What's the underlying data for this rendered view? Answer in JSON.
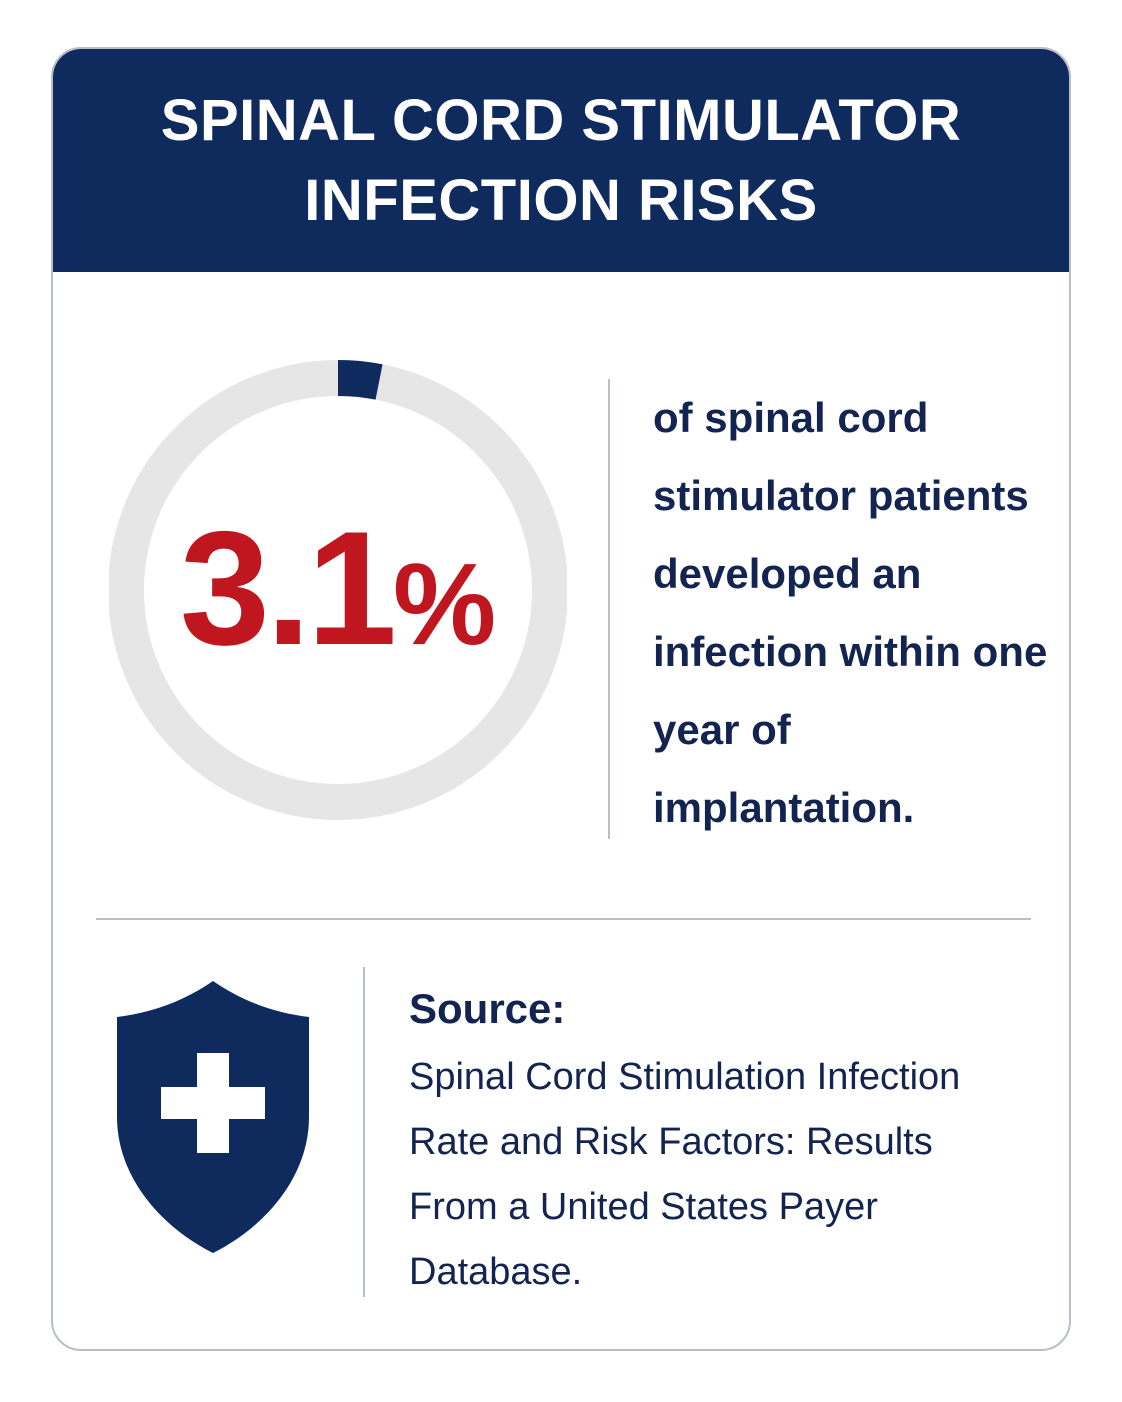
{
  "header": {
    "title": "SPINAL CORD STIMULATOR INFECTION RISKS"
  },
  "stat": {
    "number": "3.1",
    "unit": "%",
    "fraction": 0.031,
    "description": "of spinal cord stimulator patients developed an infection within one year of implantation."
  },
  "source": {
    "label": "Source:",
    "text": "Spinal Cord Stimulation Infection Rate and Risk Factors: Results From a United States Payer Database."
  },
  "icons": {
    "shield": "shield-plus-icon"
  },
  "colors": {
    "navy": "#0f2a5c",
    "accent_red": "#c0161f",
    "ring_track": "#e6e6e6",
    "divider": "#b9bec8"
  }
}
